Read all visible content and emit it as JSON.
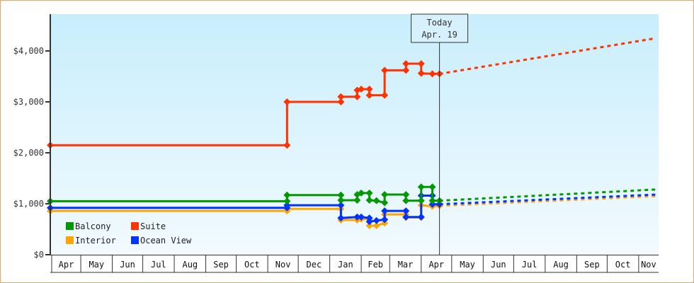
{
  "chart_data": {
    "type": "line",
    "title": "",
    "xlabel": "",
    "ylabel": "",
    "ylim": [
      0,
      4700
    ],
    "yticks": [
      "$0",
      "$1,000",
      "$2,000",
      "$3,000",
      "$4,000"
    ],
    "ytick_values": [
      0,
      1000,
      2000,
      3000,
      4000
    ],
    "xticks": [
      "Apr",
      "May",
      "Jun",
      "Jul",
      "Aug",
      "Sep",
      "Oct",
      "Nov",
      "Dec",
      "Jan",
      "Feb",
      "Mar",
      "Apr",
      "May",
      "Jun",
      "Jul",
      "Aug",
      "Sep",
      "Oct",
      "Nov"
    ],
    "xlim": [
      "Apr 1",
      "Nov 18"
    ],
    "grid": false,
    "legend_position": "bottom-left",
    "today_marker": {
      "line1": "Today",
      "line2": "Apr. 19",
      "date": "Apr 19"
    },
    "series": [
      {
        "name": "Interior",
        "color": "#ffa500",
        "points": [
          [
            "Apr 1",
            860
          ],
          [
            "Nov 20",
            860
          ],
          [
            "Nov 20",
            900
          ],
          [
            "Jan 12",
            900
          ],
          [
            "Jan 12",
            680
          ],
          [
            "Jan 28",
            680
          ],
          [
            "Feb 1",
            700
          ],
          [
            "Feb 9",
            700
          ],
          [
            "Feb 9",
            570
          ],
          [
            "Feb 16",
            570
          ],
          [
            "Feb 24",
            620
          ],
          [
            "Feb 24",
            790
          ],
          [
            "Mar 17",
            790
          ],
          [
            "Mar 17",
            730
          ],
          [
            "Apr 1",
            730
          ],
          [
            "Apr 1",
            970
          ],
          [
            "Apr 12",
            950
          ],
          [
            "Apr 19",
            960
          ]
        ],
        "forecast": [
          [
            "Apr 19",
            960
          ],
          [
            "Nov 18",
            1150
          ]
        ]
      },
      {
        "name": "Ocean View",
        "color": "#0033ff",
        "points": [
          [
            "Apr 1",
            920
          ],
          [
            "Nov 20",
            920
          ],
          [
            "Nov 20",
            970
          ],
          [
            "Jan 12",
            970
          ],
          [
            "Jan 12",
            720
          ],
          [
            "Jan 28",
            740
          ],
          [
            "Feb 1",
            740
          ],
          [
            "Feb 9",
            720
          ],
          [
            "Feb 9",
            650
          ],
          [
            "Feb 16",
            670
          ],
          [
            "Feb 24",
            690
          ],
          [
            "Feb 24",
            860
          ],
          [
            "Mar 17",
            860
          ],
          [
            "Mar 17",
            740
          ],
          [
            "Apr 1",
            740
          ],
          [
            "Apr 1",
            1160
          ],
          [
            "Apr 12",
            1160
          ],
          [
            "Apr 12",
            990
          ],
          [
            "Apr 19",
            990
          ]
        ],
        "forecast": [
          [
            "Apr 19",
            990
          ],
          [
            "Nov 18",
            1180
          ]
        ]
      },
      {
        "name": "Balcony",
        "color": "#009900",
        "points": [
          [
            "Apr 1",
            1050
          ],
          [
            "Nov 20",
            1050
          ],
          [
            "Nov 20",
            1170
          ],
          [
            "Jan 12",
            1170
          ],
          [
            "Jan 12",
            1070
          ],
          [
            "Jan 28",
            1070
          ],
          [
            "Jan 28",
            1180
          ],
          [
            "Feb 1",
            1210
          ],
          [
            "Feb 9",
            1210
          ],
          [
            "Feb 9",
            1070
          ],
          [
            "Feb 16",
            1060
          ],
          [
            "Feb 24",
            1020
          ],
          [
            "Feb 24",
            1180
          ],
          [
            "Mar 17",
            1180
          ],
          [
            "Mar 17",
            1060
          ],
          [
            "Apr 1",
            1060
          ],
          [
            "Apr 1",
            1330
          ],
          [
            "Apr 12",
            1330
          ],
          [
            "Apr 12",
            1060
          ],
          [
            "Apr 19",
            1060
          ]
        ],
        "forecast": [
          [
            "Apr 19",
            1060
          ],
          [
            "Nov 18",
            1280
          ]
        ]
      },
      {
        "name": "Suite",
        "color": "#ff3300",
        "points": [
          [
            "Apr 1",
            2150
          ],
          [
            "Nov 20",
            2150
          ],
          [
            "Nov 20",
            3000
          ],
          [
            "Jan 12",
            3000
          ],
          [
            "Jan 12",
            3100
          ],
          [
            "Jan 28",
            3100
          ],
          [
            "Jan 28",
            3230
          ],
          [
            "Feb 1",
            3250
          ],
          [
            "Feb 9",
            3250
          ],
          [
            "Feb 9",
            3130
          ],
          [
            "Feb 24",
            3130
          ],
          [
            "Feb 24",
            3620
          ],
          [
            "Mar 17",
            3620
          ],
          [
            "Mar 17",
            3750
          ],
          [
            "Apr 1",
            3750
          ],
          [
            "Apr 1",
            3560
          ],
          [
            "Apr 12",
            3550
          ],
          [
            "Apr 19",
            3550
          ]
        ],
        "forecast": [
          [
            "Apr 19",
            3550
          ],
          [
            "Nov 18",
            4250
          ]
        ]
      }
    ],
    "legend": [
      {
        "name": "Balcony",
        "color": "#009900"
      },
      {
        "name": "Suite",
        "color": "#ff3300"
      },
      {
        "name": "Interior",
        "color": "#ffa500"
      },
      {
        "name": "Ocean View",
        "color": "#0033ff"
      }
    ]
  }
}
